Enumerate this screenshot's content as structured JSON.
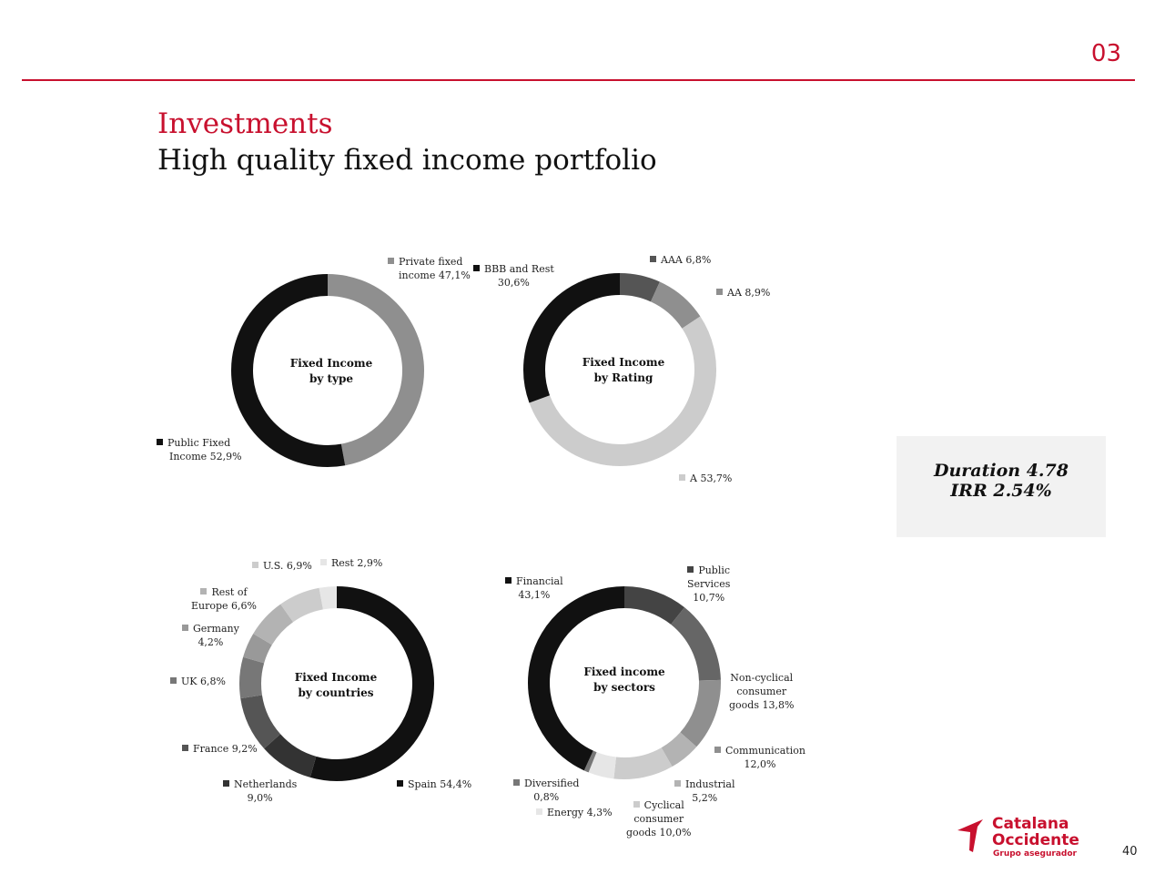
{
  "header": {
    "section_number": "03",
    "title": "Investments",
    "subtitle": "High quality fixed income portfolio",
    "accent_color": "#c8102e"
  },
  "metrics": {
    "duration": "Duration 4.78",
    "irr": "IRR 2.54%"
  },
  "footer": {
    "page_number": "40",
    "logo_line1": "Catalana",
    "logo_line2": "Occidente",
    "logo_tagline": "Grupo asegurador"
  },
  "chart_data": [
    {
      "type": "pie",
      "title_line1": "Fixed Income",
      "title_line2": "by type",
      "slices": [
        {
          "label": "Private fixed income",
          "label_line1": "Private fixed",
          "label_line2": "income 47,1%",
          "value": 47.1,
          "color": "#8f8f8f"
        },
        {
          "label": "Public Fixed Income",
          "label_line1": "Public Fixed",
          "label_line2": "Income 52,9%",
          "value": 52.9,
          "color": "#111111"
        }
      ]
    },
    {
      "type": "pie",
      "title_line1": "Fixed Income",
      "title_line2": "by Rating",
      "slices": [
        {
          "label": "AAA",
          "label_line1": "AAA 6,8%",
          "label_line2": "",
          "value": 6.8,
          "color": "#555555"
        },
        {
          "label": "AA",
          "label_line1": "AA 8,9%",
          "label_line2": "",
          "value": 8.9,
          "color": "#8f8f8f"
        },
        {
          "label": "A",
          "label_line1": "A 53,7%",
          "label_line2": "",
          "value": 53.7,
          "color": "#cccccc"
        },
        {
          "label": "BBB and Rest",
          "label_line1": "BBB and Rest",
          "label_line2": "30,6%",
          "value": 30.6,
          "color": "#111111"
        }
      ]
    },
    {
      "type": "pie",
      "title_line1": "Fixed Income",
      "title_line2": "by countries",
      "slices": [
        {
          "label": "Spain",
          "label_line1": "Spain 54,4%",
          "label_line2": "",
          "value": 54.4,
          "color": "#111111"
        },
        {
          "label": "Netherlands",
          "label_line1": "Netherlands",
          "label_line2": "9,0%",
          "value": 9.0,
          "color": "#333333"
        },
        {
          "label": "France",
          "label_line1": "France 9,2%",
          "label_line2": "",
          "value": 9.2,
          "color": "#555555"
        },
        {
          "label": "UK",
          "label_line1": "UK 6,8%",
          "label_line2": "",
          "value": 6.8,
          "color": "#777777"
        },
        {
          "label": "Germany",
          "label_line1": "Germany",
          "label_line2": "4,2%",
          "value": 4.2,
          "color": "#999999"
        },
        {
          "label": "Rest of Europe",
          "label_line1": "Rest of",
          "label_line2": "Europe 6,6%",
          "value": 6.6,
          "color": "#b3b3b3"
        },
        {
          "label": "U.S.",
          "label_line1": "U.S. 6,9%",
          "label_line2": "",
          "value": 6.9,
          "color": "#cccccc"
        },
        {
          "label": "Rest",
          "label_line1": "Rest 2,9%",
          "label_line2": "",
          "value": 2.9,
          "color": "#e6e6e6"
        }
      ]
    },
    {
      "type": "pie",
      "title_line1": "Fixed income",
      "title_line2": "by sectors",
      "slices": [
        {
          "label": "Public Services",
          "label_line1": "Public",
          "label_line2": "Services",
          "label_line3": "10,7%",
          "value": 10.7,
          "color": "#444444"
        },
        {
          "label": "Non-cyclical consumer goods",
          "label_line1": "Non-cyclical",
          "label_line2": "consumer",
          "label_line3": "goods 13,8%",
          "value": 13.8,
          "color": "#666666"
        },
        {
          "label": "Communication",
          "label_line1": "Communication",
          "label_line2": "12,0%",
          "label_line3": "",
          "value": 12.0,
          "color": "#8f8f8f"
        },
        {
          "label": "Industrial",
          "label_line1": "Industrial",
          "label_line2": "5,2%",
          "label_line3": "",
          "value": 5.2,
          "color": "#b3b3b3"
        },
        {
          "label": "Cyclical consumer goods",
          "label_line1": "Cyclical",
          "label_line2": "consumer",
          "label_line3": "goods 10,0%",
          "value": 10.0,
          "color": "#cccccc"
        },
        {
          "label": "Energy",
          "label_line1": "Energy 4,3%",
          "label_line2": "",
          "label_line3": "",
          "value": 4.3,
          "color": "#e6e6e6"
        },
        {
          "label": "Diversified",
          "label_line1": "Diversified",
          "label_line2": "0,8%",
          "label_line3": "",
          "value": 0.8,
          "color": "#777777"
        },
        {
          "label": "Financial",
          "label_line1": "Financial",
          "label_line2": "43,1%",
          "label_line3": "",
          "value": 43.1,
          "color": "#111111"
        }
      ]
    }
  ]
}
